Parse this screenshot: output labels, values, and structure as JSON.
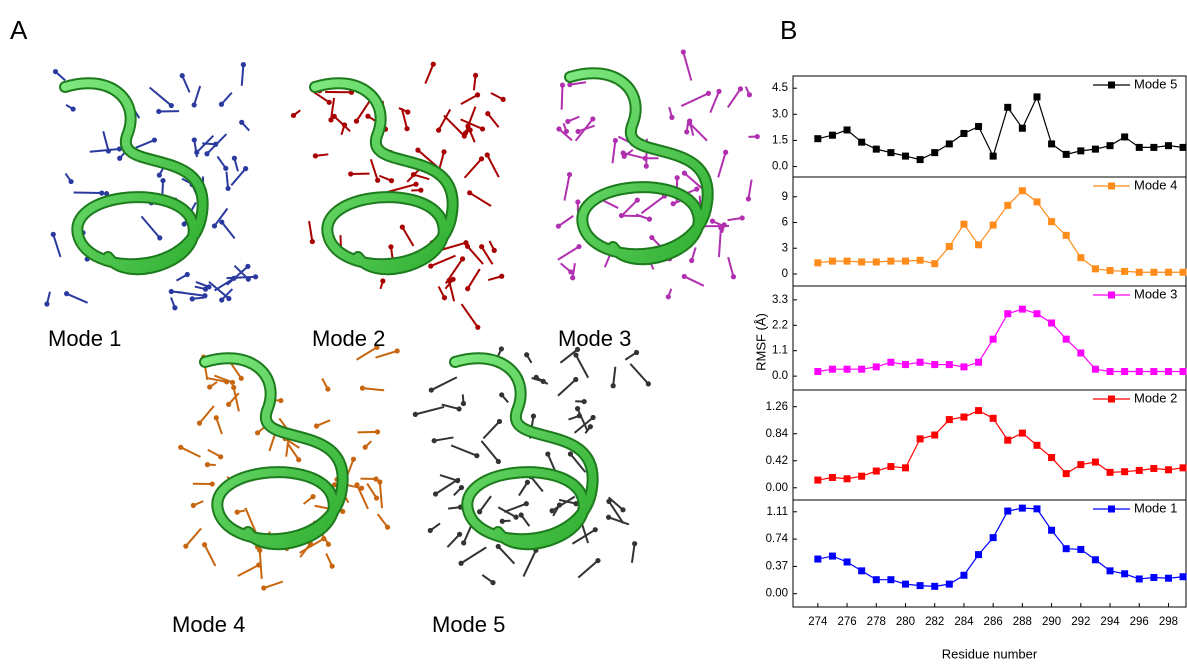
{
  "figure": {
    "panel_a": {
      "label": "A",
      "modes": [
        "Mode 1",
        "Mode 2",
        "Mode 3",
        "Mode 4",
        "Mode 5"
      ]
    },
    "panel_b": {
      "label": "B"
    }
  },
  "chart_data": [
    {
      "type": "line",
      "series": [
        {
          "name": "Mode 5",
          "color": "#000000",
          "values": [
            1.6,
            1.8,
            2.1,
            1.4,
            1.0,
            0.8,
            0.6,
            0.4,
            0.8,
            1.3,
            1.9,
            2.3,
            0.6,
            3.4,
            2.2,
            4.0,
            1.3,
            0.7,
            0.9,
            1.0,
            1.2,
            1.7,
            1.1,
            1.1,
            1.2,
            1.1
          ]
        }
      ],
      "ylim": [
        -0.6,
        5.2
      ],
      "yticks": [
        {
          "value": 0,
          "label": "0.0"
        },
        1.5,
        {
          "value": 3,
          "label": "3.0"
        },
        4.5
      ]
    },
    {
      "type": "line",
      "series": [
        {
          "name": "Mode 4",
          "color": "#ff8c1a",
          "values": [
            1.3,
            1.5,
            1.5,
            1.4,
            1.4,
            1.5,
            1.5,
            1.6,
            1.2,
            3.2,
            5.8,
            3.4,
            5.7,
            8.0,
            9.7,
            8.4,
            6.1,
            4.5,
            1.9,
            0.6,
            0.4,
            0.3,
            0.2,
            0.2,
            0.2,
            0.2
          ]
        }
      ],
      "ylim": [
        -1.4,
        11.3
      ],
      "yticks": [
        0,
        3,
        6,
        9
      ]
    },
    {
      "type": "line",
      "series": [
        {
          "name": "Mode 3",
          "color": "#ff00ff",
          "values": [
            0.2,
            0.3,
            0.3,
            0.3,
            0.4,
            0.6,
            0.5,
            0.6,
            0.5,
            0.5,
            0.4,
            0.6,
            1.6,
            2.7,
            2.9,
            2.7,
            2.3,
            1.6,
            1.0,
            0.3,
            0.2,
            0.2,
            0.2,
            0.2,
            0.2,
            0.2
          ]
        }
      ],
      "ylim": [
        -0.6,
        3.9
      ],
      "yticks": [
        {
          "value": 0,
          "label": "0.0"
        },
        1.1,
        2.2,
        3.3
      ],
      "ylabel": "RMSF (Å)"
    },
    {
      "type": "line",
      "series": [
        {
          "name": "Mode 2",
          "color": "#ff0000",
          "values": [
            0.12,
            0.16,
            0.14,
            0.18,
            0.26,
            0.33,
            0.31,
            0.76,
            0.82,
            1.06,
            1.1,
            1.2,
            1.08,
            0.74,
            0.85,
            0.66,
            0.47,
            0.22,
            0.36,
            0.4,
            0.24,
            0.25,
            0.27,
            0.3,
            0.28,
            0.31
          ]
        }
      ],
      "ylim": [
        -0.19,
        1.52
      ],
      "yticks": [
        {
          "value": 0,
          "label": "0.00"
        },
        0.42,
        0.84,
        1.26
      ]
    },
    {
      "type": "line",
      "series": [
        {
          "name": "Mode 1",
          "color": "#0000ff",
          "values": [
            0.47,
            0.51,
            0.43,
            0.31,
            0.19,
            0.19,
            0.13,
            0.11,
            0.1,
            0.13,
            0.25,
            0.53,
            0.76,
            1.12,
            1.16,
            1.15,
            0.86,
            0.61,
            0.6,
            0.46,
            0.31,
            0.27,
            0.2,
            0.22,
            0.21,
            0.23
          ]
        }
      ],
      "ylim": [
        -0.18,
        1.27
      ],
      "yticks": [
        {
          "value": 0,
          "label": "0.00"
        },
        0.37,
        0.74,
        1.11
      ],
      "x": [
        274,
        275,
        276,
        277,
        278,
        279,
        280,
        281,
        282,
        283,
        284,
        285,
        286,
        287,
        288,
        289,
        290,
        291,
        292,
        293,
        294,
        295,
        296,
        297,
        298,
        299
      ],
      "xlim": [
        272.3,
        299.2
      ],
      "xticks": [
        274,
        276,
        278,
        280,
        282,
        284,
        286,
        288,
        290,
        292,
        294,
        296,
        298
      ],
      "xlabel": "Residue number"
    }
  ]
}
